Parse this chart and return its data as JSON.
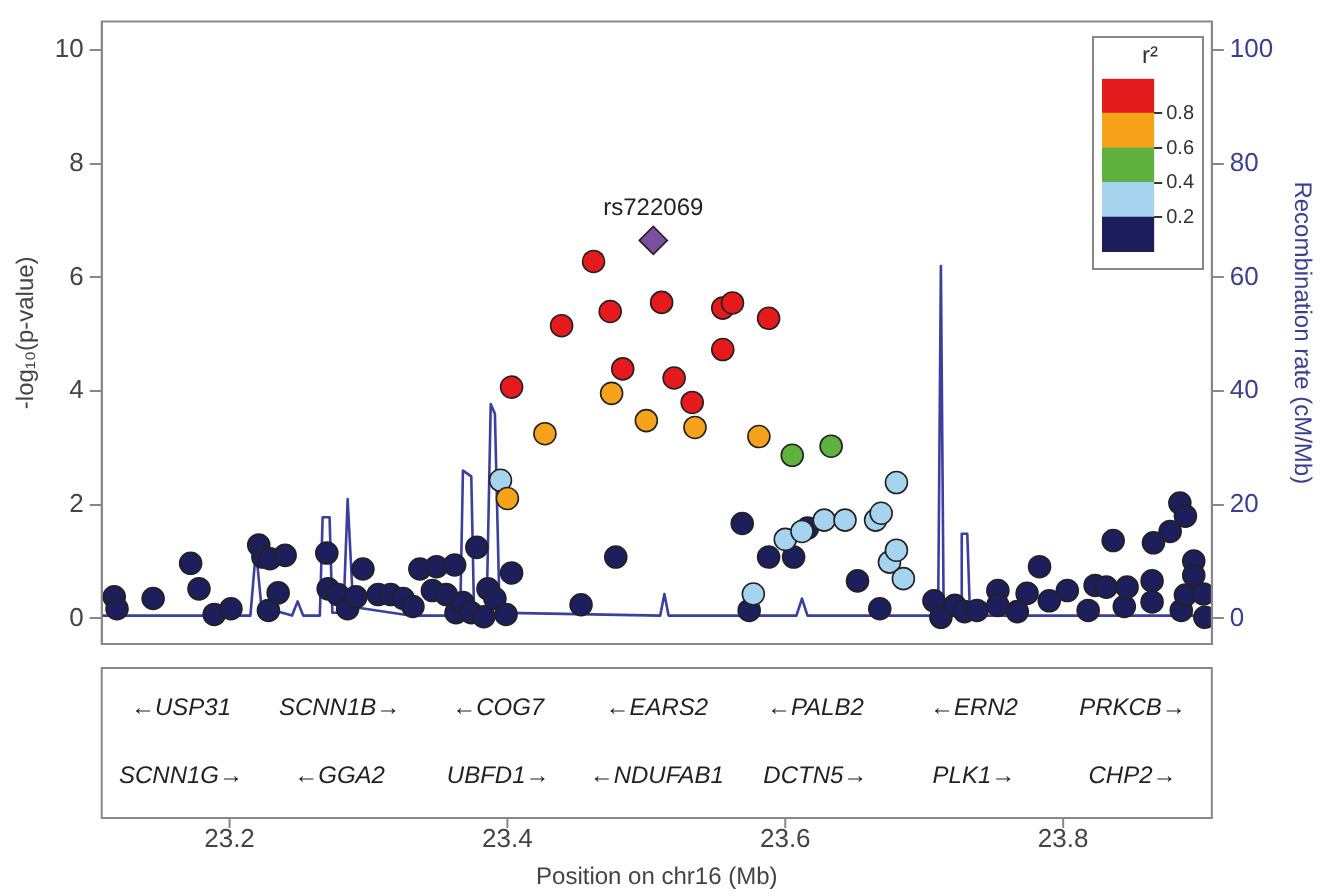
{
  "chart_data": [
    {
      "type": "scatter",
      "xlabel": "Position on chr16 (Mb)",
      "ylabel": "-log₁₀(p-value)",
      "y2label": "Recombination rate (cM/Mb)",
      "xlim": [
        23.108,
        23.907
      ],
      "xticks": [
        23.2,
        23.4,
        23.6,
        23.8
      ],
      "ylim": [
        -0.45,
        10.5
      ],
      "yticks": [
        0,
        2,
        4,
        6,
        8,
        10
      ],
      "y2lim": [
        -4.5,
        105
      ],
      "y2ticks": [
        0,
        20,
        40,
        60,
        80,
        100
      ],
      "grid": false,
      "legend": false,
      "marker": "circle",
      "series": [
        {
          "color": "#1c1f5c",
          "x": [
            23.117,
            23.119,
            23.145,
            23.172,
            23.178,
            23.189,
            23.201,
            23.221,
            23.224,
            23.229,
            23.24,
            23.235,
            23.228,
            23.27,
            23.271,
            23.278,
            23.285,
            23.291,
            23.296,
            23.307,
            23.316,
            23.325,
            23.332,
            23.337,
            23.349,
            23.346,
            23.356,
            23.362,
            23.363,
            23.368,
            23.374,
            23.378,
            23.383,
            23.386,
            23.391,
            23.399,
            23.403,
            23.453,
            23.478,
            23.569,
            23.574,
            23.588,
            23.606,
            23.616,
            23.652,
            23.668,
            23.707,
            23.712,
            23.722,
            23.729,
            23.738,
            23.753,
            23.753,
            23.767,
            23.774,
            23.783,
            23.79,
            23.803,
            23.818,
            23.823,
            23.831,
            23.836,
            23.844,
            23.846,
            23.864,
            23.864,
            23.865,
            23.877,
            23.884,
            23.888,
            23.885,
            23.888,
            23.894,
            23.894,
            23.901,
            23.902
          ],
          "values": [
            0.38,
            0.17,
            0.35,
            0.97,
            0.52,
            0.07,
            0.17,
            1.29,
            1.08,
            1.05,
            1.11,
            0.45,
            0.14,
            1.15,
            0.52,
            0.42,
            0.17,
            0.38,
            0.87,
            0.42,
            0.42,
            0.35,
            0.21,
            0.87,
            0.91,
            0.49,
            0.42,
            0.94,
            0.1,
            0.28,
            0.1,
            1.25,
            0.03,
            0.52,
            0.35,
            0.07,
            0.8,
            0.24,
            1.08,
            1.67,
            0.14,
            1.08,
            1.08,
            1.59,
            0.66,
            0.17,
            0.31,
            0.02,
            0.23,
            0.12,
            0.14,
            0.49,
            0.23,
            0.12,
            0.44,
            0.91,
            0.31,
            0.49,
            0.14,
            0.58,
            0.55,
            1.37,
            0.21,
            0.55,
            0.66,
            0.29,
            1.33,
            1.53,
            2.03,
            1.8,
            0.14,
            0.41,
            1.01,
            0.76,
            0.43,
            0.02
          ]
        },
        {
          "color": "#a6d4ef",
          "x": [
            23.395,
            23.577,
            23.6,
            23.612,
            23.628,
            23.643,
            23.665,
            23.669,
            23.68,
            23.675,
            23.68,
            23.685
          ],
          "values": [
            2.43,
            0.43,
            1.39,
            1.53,
            1.73,
            1.73,
            1.73,
            1.85,
            2.39,
            0.99,
            1.2,
            0.7
          ]
        },
        {
          "color": "#5fb23d",
          "x": [
            23.605,
            23.633
          ],
          "values": [
            2.87,
            3.03
          ]
        },
        {
          "color": "#f7a21b",
          "x": [
            23.4,
            23.427,
            23.475,
            23.5,
            23.535,
            23.581
          ],
          "values": [
            2.11,
            3.25,
            3.96,
            3.48,
            3.36,
            3.2
          ]
        },
        {
          "color": "#e41a1c",
          "x": [
            23.403,
            23.439,
            23.462,
            23.474,
            23.483,
            23.511,
            23.52,
            23.533,
            23.555,
            23.562,
            23.555,
            23.588
          ],
          "values": [
            4.07,
            5.15,
            6.28,
            5.4,
            4.39,
            5.56,
            4.23,
            3.8,
            5.46,
            5.55,
            4.73,
            5.28
          ]
        },
        {
          "color": "#7b4f9e",
          "marker": "diamond",
          "x": [
            23.505
          ],
          "values": [
            6.65
          ]
        },
        {
          "type": "line",
          "axis": "y2",
          "marker": "none",
          "color": "#3b3f9e",
          "x": [
            23.108,
            23.13,
            23.215,
            23.219,
            23.223,
            23.245,
            23.249,
            23.253,
            23.265,
            23.267,
            23.272,
            23.274,
            23.282,
            23.285,
            23.289,
            23.33,
            23.366,
            23.368,
            23.374,
            23.376,
            23.385,
            23.388,
            23.391,
            23.394,
            23.396,
            23.51,
            23.513,
            23.516,
            23.608,
            23.612,
            23.616,
            23.71,
            23.712,
            23.714,
            23.726,
            23.727,
            23.731,
            23.733,
            23.907
          ],
          "values": [
            0.5,
            0.5,
            0.5,
            12,
            2,
            0.5,
            3,
            0.5,
            0.5,
            17.8,
            17.8,
            1,
            1,
            21,
            2,
            0.5,
            0.5,
            26,
            25,
            1,
            1,
            37.7,
            36,
            5,
            1,
            0.5,
            4.3,
            0.5,
            0.5,
            3.5,
            0.5,
            0.5,
            62,
            0.5,
            0.5,
            14.9,
            14.9,
            0.5,
            0.5
          ]
        }
      ],
      "annotations": [
        {
          "text": "rs722069",
          "x": 23.505,
          "y": 6.65
        },
        "←USP31",
        "SCNN1B→",
        "←COG7",
        "←EARS2",
        "←PALB2",
        "←ERN2",
        "PRKCB→",
        "SCNN1G→",
        "←GGA2",
        "UBFD1→",
        "←NDUFAB1",
        "DCTN5→",
        "PLK1→",
        "CHP2→"
      ]
    },
    {
      "type": "bar",
      "stacked": true,
      "title": "r²",
      "categories": [
        null
      ],
      "ylim": [
        0,
        1
      ],
      "yticks": [
        0.2,
        0.4,
        0.6,
        0.8
      ],
      "tick_labels": "y",
      "legend": false,
      "grid": false,
      "series": [
        {
          "color": "#1c1f5c",
          "values": [
            0.2
          ]
        },
        {
          "color": "#a6d4ef",
          "values": [
            0.2
          ]
        },
        {
          "color": "#5fb23d",
          "values": [
            0.2
          ]
        },
        {
          "color": "#f7a21b",
          "values": [
            0.2
          ]
        },
        {
          "color": "#e41a1c",
          "values": [
            0.2
          ]
        }
      ]
    }
  ]
}
